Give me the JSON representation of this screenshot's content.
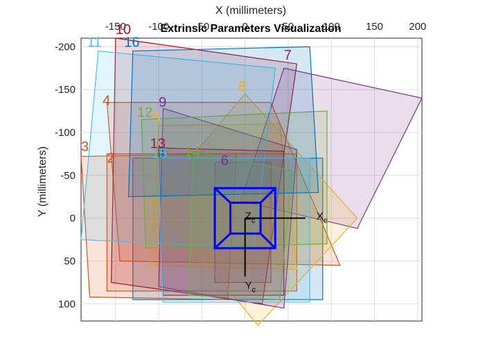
{
  "chart_data": {
    "type": "3d-extrinsics",
    "title": "Extrinsic Parameters Visualization",
    "xlabel": "X (millimeters)",
    "ylabel": "Y (millimeters)",
    "xlim": [
      -190,
      205
    ],
    "ylim": [
      -210,
      120
    ],
    "xticks": [
      -150,
      -100,
      -50,
      0,
      50,
      100,
      150,
      200
    ],
    "yticks": [
      -200,
      -150,
      -100,
      -50,
      0,
      50,
      100
    ],
    "xtick_labels": [
      "-150",
      "-100",
      "-50",
      "0",
      "50",
      "100",
      "150",
      "200"
    ],
    "ytick_labels": [
      "-200",
      "-150",
      "-100",
      "-50",
      "0",
      "50",
      "100"
    ],
    "grid": true,
    "camera": {
      "axis_labels": {
        "x": "X",
        "y": "Y",
        "z": "Z",
        "sub": "c"
      },
      "frustum_color": "#0000ff",
      "axes_color": "#000000",
      "front_rect": [
        -35,
        -35,
        35,
        35
      ],
      "back_rect": [
        -17,
        -18,
        18,
        18
      ],
      "x_axis_end": 70,
      "y_axis_end": 68
    },
    "boards": [
      {
        "id": "1",
        "color": "#0072bd",
        "corners": [
          [
            -130,
            -70
          ],
          [
            90,
            -70
          ],
          [
            90,
            95
          ],
          [
            -130,
            95
          ]
        ],
        "label_at": [
          -100,
          -70
        ]
      },
      {
        "id": "2",
        "color": "#d95319",
        "corners": [
          [
            -160,
            -75
          ],
          [
            60,
            -75
          ],
          [
            60,
            85
          ],
          [
            -160,
            85
          ]
        ],
        "label_at": [
          -160,
          -65
        ]
      },
      {
        "id": "3",
        "color": "#d95319",
        "corners": [
          [
            -190,
            -72
          ],
          [
            -10,
            -75
          ],
          [
            -20,
            95
          ],
          [
            -180,
            92
          ]
        ],
        "label_at": [
          -190,
          -78
        ]
      },
      {
        "id": "4",
        "color": "#d95319",
        "corners": [
          [
            -160,
            -135
          ],
          [
            30,
            -135
          ],
          [
            110,
            55
          ],
          [
            -145,
            50
          ]
        ],
        "label_at": [
          -165,
          -132
        ]
      },
      {
        "id": "5",
        "color": "#edb120",
        "corners": [
          [
            -100,
            -108
          ],
          [
            40,
            -110
          ],
          [
            60,
            60
          ],
          [
            -110,
            55
          ]
        ],
        "label_at": [
          -107,
          -112
        ]
      },
      {
        "id": "6",
        "color": "#7e2f8e",
        "corners": [
          [
            -35,
            -65
          ],
          [
            30,
            -65
          ],
          [
            30,
            75
          ],
          [
            -35,
            75
          ]
        ],
        "label_at": [
          -28,
          -62
        ]
      },
      {
        "id": "7",
        "color": "#7e2f8e",
        "corners": [
          [
            45,
            -175
          ],
          [
            205,
            -140
          ],
          [
            130,
            12
          ],
          [
            -5,
            -20
          ]
        ],
        "label_at": [
          45,
          -185
        ]
      },
      {
        "id": "8",
        "color": "#edb120",
        "corners": [
          [
            0,
            -145
          ],
          [
            130,
            0
          ],
          [
            15,
            125
          ],
          [
            -105,
            -20
          ]
        ],
        "label_at": [
          -8,
          -148
        ]
      },
      {
        "id": "9",
        "color": "#7e2f8e",
        "corners": [
          [
            -95,
            -128
          ],
          [
            60,
            -80
          ],
          [
            45,
            105
          ],
          [
            -100,
            80
          ]
        ],
        "label_at": [
          -100,
          -130
        ]
      },
      {
        "id": "10",
        "color": "#a2142f",
        "corners": [
          [
            -150,
            -210
          ],
          [
            60,
            -180
          ],
          [
            20,
            100
          ],
          [
            -155,
            75
          ]
        ],
        "label_at": [
          -150,
          -215
        ]
      },
      {
        "id": "11",
        "color": "#4dbeee",
        "corners": [
          [
            -170,
            -195
          ],
          [
            35,
            -175
          ],
          [
            10,
            35
          ],
          [
            -190,
            25
          ]
        ],
        "label_at": [
          -183,
          -200
        ]
      },
      {
        "id": "12",
        "color": "#77ac30",
        "corners": [
          [
            -120,
            -115
          ],
          [
            95,
            -125
          ],
          [
            95,
            30
          ],
          [
            -115,
            35
          ]
        ],
        "label_at": [
          -125,
          -118
        ]
      },
      {
        "id": "13",
        "color": "#a2142f",
        "corners": [
          [
            -100,
            -82
          ],
          [
            45,
            -78
          ],
          [
            45,
            90
          ],
          [
            -95,
            90
          ]
        ],
        "label_at": [
          -110,
          -82
        ]
      },
      {
        "id": "14",
        "color": "#77ac30",
        "corners": [
          [
            -60,
            -78
          ],
          [
            55,
            -55
          ],
          [
            40,
            95
          ],
          [
            -65,
            90
          ]
        ],
        "label_at": [
          -70,
          -72
        ]
      },
      {
        "id": "15",
        "color": "#4dbeee",
        "corners": [
          [
            -100,
            -70
          ],
          [
            75,
            -70
          ],
          [
            75,
            98
          ],
          [
            -95,
            98
          ]
        ],
        "label_at": [
          -108,
          -70
        ]
      },
      {
        "id": "16",
        "color": "#0072bd",
        "corners": [
          [
            -130,
            -195
          ],
          [
            75,
            -200
          ],
          [
            85,
            -30
          ],
          [
            -135,
            -25
          ]
        ],
        "label_at": [
          -140,
          -200
        ]
      }
    ]
  }
}
